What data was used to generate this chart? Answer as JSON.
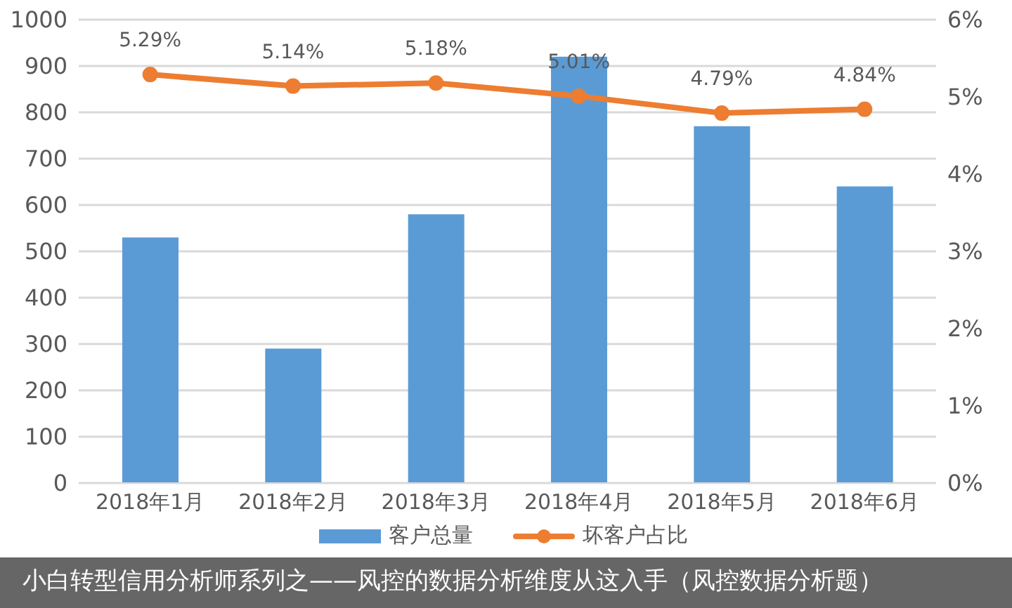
{
  "chart_data": {
    "type": "bar",
    "categories": [
      "2018年1月",
      "2018年2月",
      "2018年3月",
      "2018年4月",
      "2018年5月",
      "2018年6月"
    ],
    "series": [
      {
        "name": "客户总量",
        "color": "#5b9bd5",
        "values": [
          530,
          290,
          580,
          920,
          770,
          640
        ]
      },
      {
        "name": "坏客户占比",
        "type": "line",
        "axis": "y2",
        "color": "#ed7d31",
        "values": [
          5.29,
          5.14,
          5.18,
          5.01,
          4.79,
          4.84
        ],
        "value_labels": [
          "5.29%",
          "5.14%",
          "5.18%",
          "5.01%",
          "4.79%",
          "4.84%"
        ]
      }
    ],
    "ylim": [
      0,
      1000
    ],
    "yticks": [
      0,
      100,
      200,
      300,
      400,
      500,
      600,
      700,
      800,
      900,
      1000
    ],
    "y2lim": [
      0,
      6
    ],
    "y2ticks": [
      {
        "value": 0,
        "label": "0%"
      },
      {
        "value": 1,
        "label": "1%"
      },
      {
        "value": 2,
        "label": "2%"
      },
      {
        "value": 3,
        "label": "3%"
      },
      {
        "value": 4,
        "label": "4%"
      },
      {
        "value": 5,
        "label": "5%"
      },
      {
        "value": 6,
        "label": "6%"
      }
    ],
    "grid": "y",
    "legend": "bottom",
    "marker": "circle",
    "line_style": "solid",
    "annotations": [
      "小白转型信用分析师系列之——风控的数据分析维度从这入手（风控数据分析题）"
    ]
  }
}
